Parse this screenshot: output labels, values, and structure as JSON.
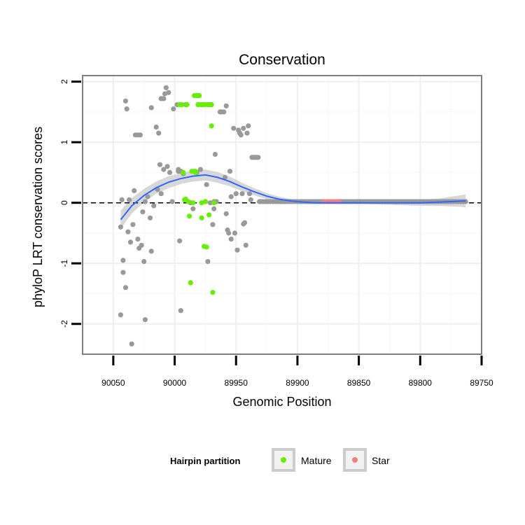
{
  "chart_data": {
    "type": "scatter",
    "title": "Conservation",
    "xlabel": "Genomic Position",
    "ylabel": "phyloP LRT conservation scores",
    "x_reversed": true,
    "xlim": [
      90075,
      89750
    ],
    "ylim": [
      -2.5,
      2.1
    ],
    "x_ticks": [
      90050,
      90000,
      89950,
      89900,
      89850,
      89800,
      89750
    ],
    "x_tick_labels": [
      "90050",
      "90000",
      "89950",
      "89900",
      "89850",
      "89800",
      "89750"
    ],
    "y_ticks": [
      -2,
      -1,
      0,
      1,
      2
    ],
    "y_tick_labels": [
      "-2",
      "-1",
      "0",
      "1",
      "2"
    ],
    "grid": true,
    "reference_line": {
      "y": 0,
      "style": "dashed",
      "color": "#000000"
    },
    "legend": {
      "title": "Hairpin partition",
      "position": "bottom",
      "entries": [
        {
          "label": "Mature",
          "color": "#66ee00"
        },
        {
          "label": "Star",
          "color": "#f08080"
        }
      ]
    },
    "colors": {
      "other": "#999999",
      "mature": "#66ee00",
      "star": "#f08080",
      "smooth": "#3366ff",
      "band": "#d0d0d0"
    },
    "series": [
      {
        "name": "Other",
        "points": [
          [
            90044,
            -0.4
          ],
          [
            90043,
            0.05
          ],
          [
            90042,
            -0.95
          ],
          [
            90042,
            -1.15
          ],
          [
            90040,
            1.68
          ],
          [
            90039,
            1.55
          ],
          [
            90040,
            -1.4
          ],
          [
            90044,
            -1.85
          ],
          [
            90038,
            -0.48
          ],
          [
            90037,
            0.05
          ],
          [
            90036,
            -0.65
          ],
          [
            90035,
            -2.33
          ],
          [
            90034,
            -0.36
          ],
          [
            90033,
            0.2
          ],
          [
            90032,
            1.12
          ],
          [
            90030,
            1.12
          ],
          [
            90029,
            -0.75
          ],
          [
            90030,
            -0.6
          ],
          [
            90028,
            1.12
          ],
          [
            90027,
            -0.7
          ],
          [
            90026,
            -0.15
          ],
          [
            90025,
            -0.97
          ],
          [
            90024,
            -1.93
          ],
          [
            90024,
            0.02
          ],
          [
            90022,
            0.1
          ],
          [
            90020,
            -0.25
          ],
          [
            90019,
            -0.8
          ],
          [
            90019,
            1.57
          ],
          [
            90017,
            -0.05
          ],
          [
            90015,
            1.25
          ],
          [
            90014,
            0.22
          ],
          [
            90013,
            1.15
          ],
          [
            90012,
            0.63
          ],
          [
            90011,
            1.72
          ],
          [
            90011,
            0.15
          ],
          [
            90009,
            1.72
          ],
          [
            90009,
            0.55
          ],
          [
            90008,
            1.8
          ],
          [
            90007,
            1.9
          ],
          [
            90006,
            0.6
          ],
          [
            90005,
            1.82
          ],
          [
            90004,
            0.5
          ],
          [
            90002,
            0.02
          ],
          [
            90001,
            1.55
          ],
          [
            89998,
            1.62
          ],
          [
            89997,
            0.52
          ],
          [
            89997,
            0.55
          ],
          [
            89996,
            -0.63
          ],
          [
            89995,
            0.52
          ],
          [
            89995,
            -1.78
          ],
          [
            89993,
            0.48
          ],
          [
            89991,
            1.62
          ],
          [
            89987,
            0.0
          ],
          [
            89985,
            -0.1
          ],
          [
            89984,
            0.52
          ],
          [
            89982,
            0.5
          ],
          [
            89979,
            0.55
          ],
          [
            89975,
            0.02
          ],
          [
            89974,
            0.3
          ],
          [
            89973,
            -0.97
          ],
          [
            89971,
            0.0
          ],
          [
            89969,
            -0.36
          ],
          [
            89968,
            0.02
          ],
          [
            89968,
            -0.1
          ],
          [
            89967,
            0.8
          ],
          [
            89966,
            0.02
          ],
          [
            89963,
            1.5
          ],
          [
            89962,
            1.5
          ],
          [
            89960,
            1.5
          ],
          [
            89959,
            0.42
          ],
          [
            89958,
            1.6
          ],
          [
            89958,
            -0.18
          ],
          [
            89957,
            -0.45
          ],
          [
            89956,
            -0.5
          ],
          [
            89955,
            0.52
          ],
          [
            89954,
            -0.6
          ],
          [
            89954,
            0.1
          ],
          [
            89952,
            1.23
          ],
          [
            89951,
            -0.5
          ],
          [
            89950,
            0.15
          ],
          [
            89949,
            -0.78
          ],
          [
            89948,
            1.2
          ],
          [
            89947,
            1.15
          ],
          [
            89946,
            1.12
          ],
          [
            89945,
            0.15
          ],
          [
            89944,
            1.23
          ],
          [
            89944,
            -0.35
          ],
          [
            89943,
            -0.33
          ],
          [
            89942,
            -0.7
          ],
          [
            89941,
            1.15
          ],
          [
            89940,
            1.27
          ],
          [
            89939,
            0.15
          ],
          [
            89938,
            0.05
          ],
          [
            89937,
            0.75
          ],
          [
            89936,
            0.75
          ],
          [
            89935,
            0.75
          ],
          [
            89934,
            0.75
          ],
          [
            89933,
            0.75
          ],
          [
            89932,
            0.75
          ],
          [
            89931,
            0.02
          ],
          [
            89930,
            0.02
          ],
          [
            89928,
            0.02
          ],
          [
            89926,
            0.02
          ],
          [
            89924,
            0.02
          ],
          [
            89922,
            0.02
          ],
          [
            89920,
            0.02
          ],
          [
            89918,
            0.02
          ],
          [
            89916,
            0.02
          ],
          [
            89914,
            0.02
          ],
          [
            89912,
            0.02
          ],
          [
            89910,
            0.02
          ],
          [
            89908,
            0.02
          ],
          [
            89906,
            0.02
          ],
          [
            89904,
            0.02
          ],
          [
            89902,
            0.02
          ],
          [
            89900,
            0.02
          ],
          [
            89898,
            0.02
          ],
          [
            89896,
            0.02
          ],
          [
            89894,
            0.02
          ],
          [
            89892,
            0.02
          ],
          [
            89890,
            0.02
          ],
          [
            89888,
            0.02
          ],
          [
            89886,
            0.02
          ],
          [
            89884,
            0.02
          ],
          [
            89882,
            0.02
          ],
          [
            89880,
            0.02
          ],
          [
            89865,
            0.02
          ],
          [
            89863,
            0.02
          ],
          [
            89861,
            0.02
          ],
          [
            89859,
            0.02
          ],
          [
            89857,
            0.02
          ],
          [
            89855,
            0.02
          ],
          [
            89853,
            0.02
          ],
          [
            89851,
            0.02
          ],
          [
            89849,
            0.02
          ],
          [
            89847,
            0.02
          ],
          [
            89845,
            0.02
          ],
          [
            89843,
            0.02
          ],
          [
            89841,
            0.02
          ],
          [
            89839,
            0.02
          ],
          [
            89837,
            0.02
          ],
          [
            89835,
            0.02
          ],
          [
            89833,
            0.02
          ],
          [
            89831,
            0.02
          ],
          [
            89829,
            0.02
          ],
          [
            89827,
            0.02
          ],
          [
            89825,
            0.02
          ],
          [
            89823,
            0.02
          ],
          [
            89821,
            0.02
          ],
          [
            89819,
            0.02
          ],
          [
            89817,
            0.02
          ],
          [
            89815,
            0.02
          ],
          [
            89813,
            0.02
          ],
          [
            89811,
            0.02
          ],
          [
            89809,
            0.02
          ],
          [
            89807,
            0.02
          ],
          [
            89805,
            0.02
          ],
          [
            89803,
            0.02
          ],
          [
            89801,
            0.02
          ],
          [
            89799,
            0.02
          ],
          [
            89797,
            0.02
          ],
          [
            89795,
            0.02
          ],
          [
            89793,
            0.02
          ],
          [
            89791,
            0.02
          ],
          [
            89789,
            0.02
          ],
          [
            89787,
            0.02
          ],
          [
            89785,
            0.02
          ],
          [
            89783,
            0.02
          ],
          [
            89781,
            0.02
          ],
          [
            89779,
            0.02
          ],
          [
            89777,
            0.02
          ],
          [
            89775,
            0.02
          ],
          [
            89773,
            0.02
          ],
          [
            89771,
            0.02
          ],
          [
            89769,
            0.02
          ],
          [
            89767,
            0.02
          ],
          [
            89765,
            0.02
          ],
          [
            89763,
            0.02
          ]
        ]
      },
      {
        "name": "Mature",
        "points": [
          [
            89996,
            1.62
          ],
          [
            89994,
            1.62
          ],
          [
            89993,
            0.5
          ],
          [
            89992,
            0.05
          ],
          [
            89991,
            0.06
          ],
          [
            89990,
            1.62
          ],
          [
            89989,
            0.02
          ],
          [
            89988,
            -0.22
          ],
          [
            89987,
            -1.32
          ],
          [
            89986,
            0.52
          ],
          [
            89985,
            0.0
          ],
          [
            89984,
            1.77
          ],
          [
            89983,
            0.52
          ],
          [
            89983,
            0.5
          ],
          [
            89982,
            1.77
          ],
          [
            89981,
            1.77
          ],
          [
            89981,
            1.62
          ],
          [
            89980,
            1.77
          ],
          [
            89979,
            1.62
          ],
          [
            89978,
            1.62
          ],
          [
            89978,
            0.0
          ],
          [
            89978,
            -0.25
          ],
          [
            89977,
            1.62
          ],
          [
            89976,
            -0.72
          ],
          [
            89975,
            1.62
          ],
          [
            89975,
            0.02
          ],
          [
            89974,
            -0.73
          ],
          [
            89973,
            1.62
          ],
          [
            89972,
            -0.2
          ],
          [
            89972,
            1.62
          ],
          [
            89971,
            1.62
          ],
          [
            89970,
            1.27
          ],
          [
            89970,
            1.62
          ],
          [
            89969,
            -1.48
          ],
          [
            89968,
            0.0
          ]
        ]
      },
      {
        "name": "Star",
        "points": [
          [
            89878,
            0.02
          ],
          [
            89876,
            0.02
          ],
          [
            89874,
            0.02
          ],
          [
            89872,
            0.02
          ],
          [
            89870,
            0.02
          ],
          [
            89868,
            0.02
          ],
          [
            89866,
            0.02
          ]
        ]
      }
    ],
    "smooth": {
      "method": "loess",
      "x": [
        90044,
        90035,
        90025,
        90015,
        90005,
        89995,
        89985,
        89975,
        89965,
        89955,
        89945,
        89935,
        89925,
        89915,
        89905,
        89895,
        89885,
        89875,
        89860,
        89845,
        89830,
        89815,
        89800,
        89785,
        89775,
        89765,
        89763
      ],
      "y": [
        -0.28,
        -0.05,
        0.12,
        0.25,
        0.34,
        0.4,
        0.44,
        0.46,
        0.42,
        0.35,
        0.26,
        0.18,
        0.11,
        0.06,
        0.03,
        0.01,
        0.0,
        0.0,
        0.0,
        0.0,
        0.0,
        0.0,
        0.0,
        0.01,
        0.02,
        0.03,
        0.03
      ],
      "se": [
        0.15,
        0.13,
        0.11,
        0.1,
        0.1,
        0.09,
        0.09,
        0.09,
        0.09,
        0.08,
        0.07,
        0.06,
        0.05,
        0.04,
        0.03,
        0.03,
        0.02,
        0.02,
        0.02,
        0.02,
        0.03,
        0.04,
        0.05,
        0.06,
        0.08,
        0.1,
        0.11
      ]
    }
  }
}
